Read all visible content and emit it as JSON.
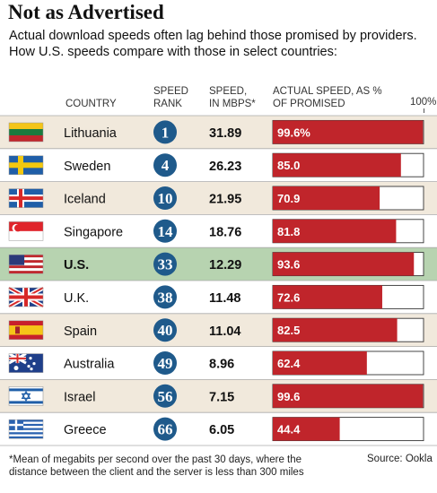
{
  "title": "Not as Advertised",
  "subtitle_line1": "Actual download speeds often lag behind those promised by providers.",
  "subtitle_line2": "How U.S. speeds compare with those in select countries:",
  "headers": {
    "country": "COUNTRY",
    "rank_line1": "SPEED",
    "rank_line2": "RANK",
    "speed_line1": "SPEED,",
    "speed_line2": "IN MBPS*",
    "actual_line1": "ACTUAL SPEED, AS %",
    "actual_line2": "OF PROMISED"
  },
  "scale_max_label": "100%",
  "footnote_line1": "*Mean of megabits per second over the past 30 days, where the",
  "footnote_line2": "distance between the client and the server is less than 300 miles",
  "source": "Source: Ookla",
  "colors": {
    "row_odd": "#f1e9dc",
    "row_even": "#ffffff",
    "row_highlight": "#b7d3b0",
    "bar": "#c0252b",
    "badge": "#1f5a8b",
    "rule": "#aaaaaa"
  },
  "chart_data": {
    "type": "bar",
    "orientation": "horizontal",
    "xlim": [
      0,
      100
    ],
    "highlight": "U.S.",
    "rows": [
      {
        "country": "Lithuania",
        "rank": "1",
        "speed": "31.89",
        "actual_label": "99.6%",
        "actual": 99.6,
        "flag": "flag-lithuania"
      },
      {
        "country": "Sweden",
        "rank": "4",
        "speed": "26.23",
        "actual_label": "85.0",
        "actual": 85.0,
        "flag": "flag-sweden"
      },
      {
        "country": "Iceland",
        "rank": "10",
        "speed": "21.95",
        "actual_label": "70.9",
        "actual": 70.9,
        "flag": "flag-iceland"
      },
      {
        "country": "Singapore",
        "rank": "14",
        "speed": "18.76",
        "actual_label": "81.8",
        "actual": 81.8,
        "flag": "flag-singapore"
      },
      {
        "country": "U.S.",
        "rank": "33",
        "speed": "12.29",
        "actual_label": "93.6",
        "actual": 93.6,
        "flag": "flag-usa"
      },
      {
        "country": "U.K.",
        "rank": "38",
        "speed": "11.48",
        "actual_label": "72.6",
        "actual": 72.6,
        "flag": "flag-uk"
      },
      {
        "country": "Spain",
        "rank": "40",
        "speed": "11.04",
        "actual_label": "82.5",
        "actual": 82.5,
        "flag": "flag-spain"
      },
      {
        "country": "Australia",
        "rank": "49",
        "speed": "8.96",
        "actual_label": "62.4",
        "actual": 62.4,
        "flag": "flag-australia"
      },
      {
        "country": "Israel",
        "rank": "56",
        "speed": "7.15",
        "actual_label": "99.6",
        "actual": 99.6,
        "flag": "flag-israel"
      },
      {
        "country": "Greece",
        "rank": "66",
        "speed": "6.05",
        "actual_label": "44.4",
        "actual": 44.4,
        "flag": "flag-greece"
      }
    ]
  }
}
